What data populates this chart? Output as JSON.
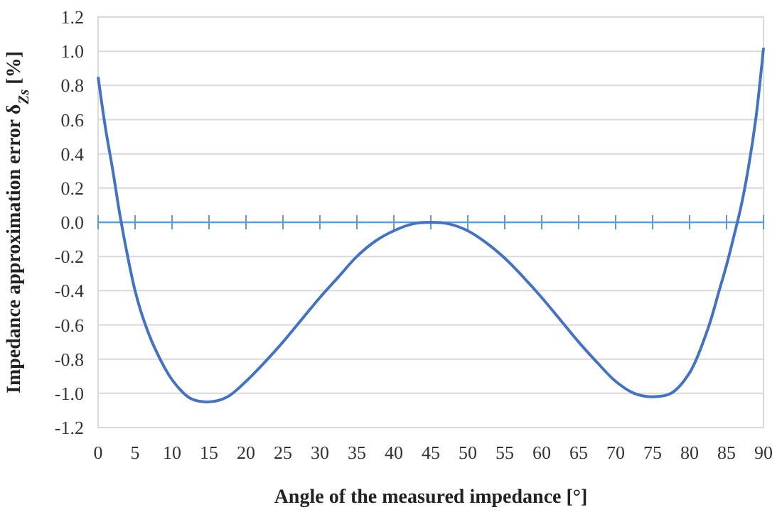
{
  "chart_data": {
    "type": "line",
    "xlabel": "Angle of the measured impedance [°]",
    "ylabel": "Impedance approximation error  δ$_{Zs}$ [%]",
    "x": [
      0,
      1,
      2,
      3,
      4,
      5,
      6,
      7.5,
      10,
      12.5,
      15,
      17.5,
      20,
      22.5,
      25,
      27.5,
      30,
      32.5,
      35,
      37.5,
      40,
      42.5,
      45,
      47.5,
      50,
      52.5,
      55,
      57.5,
      60,
      62.5,
      65,
      67.5,
      70,
      72.5,
      75,
      77.5,
      80,
      82.5,
      84,
      85,
      86,
      87,
      88,
      89,
      90
    ],
    "series": [
      {
        "color": "#4472c4",
        "values": [
          0.85,
          0.55,
          0.3,
          0.03,
          -0.2,
          -0.4,
          -0.55,
          -0.72,
          -0.92,
          -1.03,
          -1.05,
          -1.02,
          -0.93,
          -0.82,
          -0.7,
          -0.57,
          -0.44,
          -0.32,
          -0.2,
          -0.11,
          -0.05,
          -0.01,
          0,
          -0.01,
          -0.05,
          -0.12,
          -0.21,
          -0.32,
          -0.44,
          -0.57,
          -0.7,
          -0.82,
          -0.93,
          -1.0,
          -1.02,
          -1.0,
          -0.88,
          -0.62,
          -0.4,
          -0.25,
          -0.08,
          0.1,
          0.33,
          0.62,
          1.02
        ]
      }
    ],
    "xlim": [
      0,
      90
    ],
    "xticks": [
      0,
      5,
      10,
      15,
      20,
      25,
      30,
      35,
      40,
      45,
      50,
      55,
      60,
      65,
      70,
      75,
      80,
      85,
      90
    ],
    "ylim": [
      -1.2,
      1.2
    ],
    "yticks": [
      {
        "value": -1.2,
        "label": "-1.2"
      },
      {
        "value": -1,
        "label": "-1.0"
      },
      {
        "value": -0.8,
        "label": "-0.8"
      },
      {
        "value": -0.6,
        "label": "-0.6"
      },
      {
        "value": -0.4,
        "label": "-0.4"
      },
      {
        "value": -0.2,
        "label": "-0.2"
      },
      {
        "value": 0,
        "label": "0.0"
      },
      {
        "value": 0.2,
        "label": "0.2"
      },
      {
        "value": 0.4,
        "label": "0.4"
      },
      {
        "value": 0.6,
        "label": "0.6"
      },
      {
        "value": 0.8,
        "label": "0.8"
      },
      {
        "value": 1,
        "label": "1.0"
      },
      {
        "value": 1.2,
        "label": "1.2"
      }
    ],
    "ref_lines": [
      {
        "axis": "y",
        "value": 0,
        "color": "#5b9bd5"
      }
    ],
    "grid": "y",
    "marker": "none",
    "line_style": "solid"
  }
}
